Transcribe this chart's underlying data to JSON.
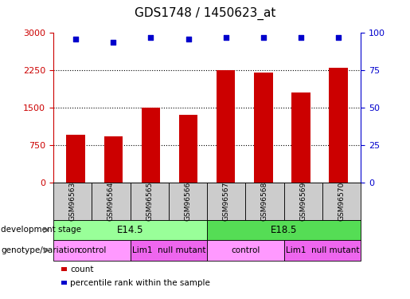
{
  "title": "GDS1748 / 1450623_at",
  "samples": [
    "GSM96563",
    "GSM96564",
    "GSM96565",
    "GSM96566",
    "GSM96567",
    "GSM96568",
    "GSM96569",
    "GSM96570"
  ],
  "counts": [
    950,
    920,
    1500,
    1350,
    2250,
    2200,
    1800,
    2300
  ],
  "percentile_ranks": [
    96,
    94,
    97,
    96,
    97,
    97,
    97,
    97
  ],
  "ylim_left": [
    0,
    3000
  ],
  "ylim_right": [
    0,
    100
  ],
  "yticks_left": [
    0,
    750,
    1500,
    2250,
    3000
  ],
  "yticks_right": [
    0,
    25,
    50,
    75,
    100
  ],
  "bar_color": "#cc0000",
  "dot_color": "#0000cc",
  "grid_color": "#000000",
  "dev_stage_groups": [
    {
      "label": "E14.5",
      "start": 0,
      "end": 3,
      "color": "#99ff99"
    },
    {
      "label": "E18.5",
      "start": 4,
      "end": 7,
      "color": "#55dd55"
    }
  ],
  "genotype_groups": [
    {
      "label": "control",
      "start": 0,
      "end": 1,
      "color": "#ff99ff"
    },
    {
      "label": "Lim1  null mutant",
      "start": 2,
      "end": 3,
      "color": "#ee66ee"
    },
    {
      "label": "control",
      "start": 4,
      "end": 5,
      "color": "#ff99ff"
    },
    {
      "label": "Lim1  null mutant",
      "start": 6,
      "end": 7,
      "color": "#ee66ee"
    }
  ],
  "legend_items": [
    {
      "label": "count",
      "color": "#cc0000"
    },
    {
      "label": "percentile rank within the sample",
      "color": "#0000cc"
    }
  ],
  "row_labels": [
    "development stage",
    "genotype/variation"
  ],
  "background_color": "#ffffff",
  "sample_box_color": "#cccccc"
}
